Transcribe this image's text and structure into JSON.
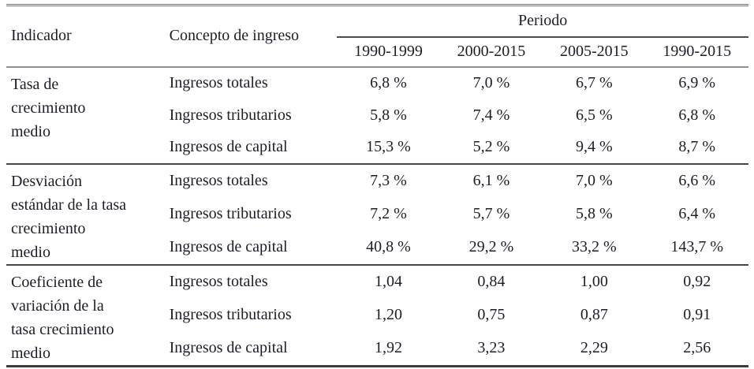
{
  "table": {
    "headers": {
      "indicador": "Indicador",
      "concepto": "Concepto de ingreso",
      "periodo": "Periodo",
      "periods": [
        "1990-1999",
        "2000-2015",
        "2005-2015",
        "1990-2015"
      ]
    },
    "groups": [
      {
        "indicator": "Tasa de\ncrecimiento\nmedio",
        "rows": [
          {
            "concept": "Ingresos totales",
            "values": [
              "6,8 %",
              "7,0 %",
              "6,7 %",
              "6,9 %"
            ]
          },
          {
            "concept": "Ingresos tributarios",
            "values": [
              "5,8 %",
              "7,4 %",
              "6,5 %",
              "6,8 %"
            ]
          },
          {
            "concept": "Ingresos de capital",
            "values": [
              "15,3 %",
              "5,2 %",
              "9,4 %",
              "8,7 %"
            ]
          }
        ]
      },
      {
        "indicator": "Desviación\nestándar de la tasa\ncrecimiento\nmedio",
        "rows": [
          {
            "concept": "Ingresos totales",
            "values": [
              "7,3 %",
              "6,1 %",
              "7,0 %",
              "6,6 %"
            ]
          },
          {
            "concept": "Ingresos tributarios",
            "values": [
              "7,2 %",
              "5,7 %",
              "5,8 %",
              "6,4 %"
            ]
          },
          {
            "concept": "Ingresos de capital",
            "values": [
              "40,8 %",
              "29,2 %",
              "33,2 %",
              "143,7 %"
            ]
          }
        ]
      },
      {
        "indicator": "Coeficiente de\nvariación de la\ntasa crecimiento\nmedio",
        "rows": [
          {
            "concept": "Ingresos totales",
            "values": [
              "1,04",
              "0,84",
              "1,00",
              "0,92"
            ]
          },
          {
            "concept": "Ingresos tributarios",
            "values": [
              "1,20",
              "0,75",
              "0,87",
              "0,91"
            ]
          },
          {
            "concept": "Ingresos de capital",
            "values": [
              "1,92",
              "3,23",
              "2,29",
              "2,56"
            ]
          }
        ]
      }
    ],
    "colors": {
      "text": "#1d1d27",
      "rule_dark": "#3c3c3c",
      "rule_gray": "#8f8f8f"
    }
  }
}
